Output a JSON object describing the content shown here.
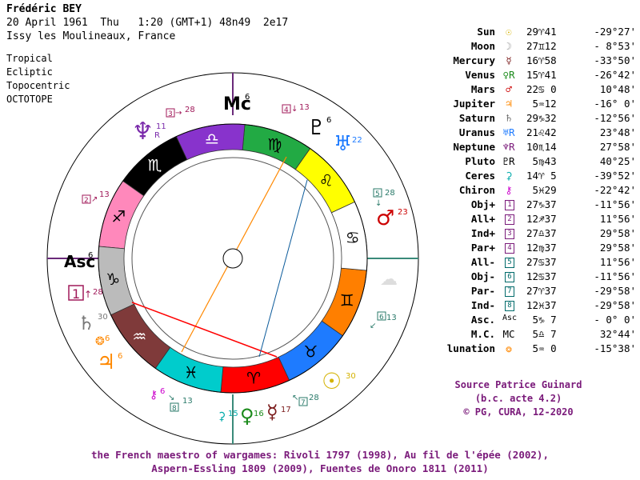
{
  "header": {
    "name": "Frédéric BEY",
    "datetime": "20 April 1961  Thu   1:20 (GMT+1) 48n49  2e17",
    "place": "Issy les Moulineaux, France",
    "systems": [
      "Tropical",
      "Ecliptic",
      "Topocentric",
      "OCTOTOPE"
    ]
  },
  "angles": {
    "mc": "Mc",
    "mc_index": "6",
    "asc": "Asc",
    "asc_index": "6"
  },
  "zodiac_glyphs": {
    "aries": "♈",
    "taurus": "♉",
    "gemini": "♊",
    "cancer": "♋",
    "leo": "♌",
    "virgo": "♍",
    "libra": "♎",
    "scorpio": "♏",
    "sagittarius": "♐",
    "capricorn": "♑",
    "aquarius": "♒",
    "pisces": "♓"
  },
  "colors": {
    "aries": "#ff0000",
    "taurus": "#1e7bff",
    "gemini": "#ff7f00",
    "cancer": "#ffffff",
    "leo": "#ffff00",
    "virgo": "#22aa44",
    "libra": "#8833cc",
    "scorpio": "#000000",
    "sagittarius": "#ff88bb",
    "capricorn": "#bbbbbb",
    "aquarius": "#7f3a3a",
    "pisces": "#00cccc",
    "label_purple": "#7a1a7a",
    "line_orange": "#ff8800",
    "line_red": "#ff0000",
    "line_blue": "#0a5a9a",
    "axis_purple": "#6a2a7a",
    "axis_teal": "#3a8a7a"
  },
  "chart_labels": {
    "neptune": "♆",
    "neptune_num": "11",
    "neptune_r": "R",
    "pluto": "♇",
    "pluto_num": "6",
    "uranus": "♅",
    "uranus_num": "22",
    "mars": "♂",
    "mars_num": "23",
    "saturn": "♄",
    "saturn_num": "30",
    "jupiter": "♃",
    "jupiter_num": "6",
    "ceres_num": "6",
    "chiron_num": "6",
    "sun": "☉",
    "sun_num": "30",
    "venus": "♀",
    "venus_num": "16",
    "mercury": "☿",
    "mercury_num": "17",
    "ceres2_num": "15",
    "box_3": "3",
    "box_3_num": "28",
    "box_4": "4",
    "box_4_num": "13",
    "box_2": "2",
    "box_2_num": "13",
    "box_5": "5",
    "box_5_num": "28",
    "box_6": "6",
    "box_6_num": "13",
    "box_7": "7",
    "box_7_num": "28",
    "box_8": "8",
    "box_8_num": "13",
    "box_1": "1",
    "box_1_num": "28"
  },
  "table": [
    {
      "name": "Sun",
      "glyph": "☉",
      "color": "#d4b200",
      "pos": "29♈41",
      "lat": "-29°27'"
    },
    {
      "name": "Moon",
      "glyph": "☽",
      "color": "#999999",
      "pos": "27♊12",
      "lat": "- 8°53'"
    },
    {
      "name": "Mercury",
      "glyph": "☿",
      "color": "#7a1a1a",
      "pos": "16♈58",
      "lat": "-33°50'"
    },
    {
      "name": "Venus",
      "glyph": "♀R",
      "color": "#1a8a1a",
      "pos": "15♈41",
      "lat": "-26°42'"
    },
    {
      "name": "Mars",
      "glyph": "♂",
      "color": "#cc0000",
      "pos": "22♋ 0",
      "lat": "10°48'"
    },
    {
      "name": "Jupiter",
      "glyph": "♃",
      "color": "#ff8800",
      "pos": " 5♒12",
      "lat": "-16° 0'"
    },
    {
      "name": "Saturn",
      "glyph": "♄",
      "color": "#666666",
      "pos": "29♑32",
      "lat": "-12°56'"
    },
    {
      "name": "Uranus",
      "glyph": "♅R",
      "color": "#1e7bff",
      "pos": "21♌42",
      "lat": "23°48'"
    },
    {
      "name": "Neptune",
      "glyph": "♆R",
      "color": "#7a1a7a",
      "pos": "10♏14",
      "lat": "27°58'"
    },
    {
      "name": "Pluto",
      "glyph": "♇R",
      "color": "#000000",
      "pos": " 5♍43",
      "lat": "40°25'"
    },
    {
      "name": "Ceres",
      "glyph": "⚳",
      "color": "#00aaaa",
      "pos": "14♈ 5",
      "lat": "-39°52'"
    },
    {
      "name": "Chiron",
      "glyph": "⚷",
      "color": "#cc00cc",
      "pos": " 5♓29",
      "lat": "-22°42'"
    },
    {
      "name": "Obj+",
      "glyph": "1",
      "color": "#7a1a7a",
      "pos": "27♑37",
      "lat": "-11°56'"
    },
    {
      "name": "All+",
      "glyph": "2",
      "color": "#7a1a7a",
      "pos": "12♐37",
      "lat": "11°56'"
    },
    {
      "name": "Ind+",
      "glyph": "3",
      "color": "#7a1a7a",
      "pos": "27♎37",
      "lat": "29°58'"
    },
    {
      "name": "Par+",
      "glyph": "4",
      "color": "#7a1a7a",
      "pos": "12♍37",
      "lat": "29°58'"
    },
    {
      "name": "All-",
      "glyph": "5",
      "color": "#006a6a",
      "pos": "27♋37",
      "lat": "11°56'"
    },
    {
      "name": "Obj-",
      "glyph": "6",
      "color": "#006a6a",
      "pos": "12♋37",
      "lat": "-11°56'"
    },
    {
      "name": "Par-",
      "glyph": "7",
      "color": "#006a6a",
      "pos": "27♈37",
      "lat": "-29°58'"
    },
    {
      "name": "Ind-",
      "glyph": "8",
      "color": "#006a6a",
      "pos": "12♓37",
      "lat": "-29°58'"
    },
    {
      "name": "Asc.",
      "glyph": "Asc",
      "color": "#000000",
      "pos": " 5♑ 7",
      "lat": "- 0° 0'"
    },
    {
      "name": "M.C.",
      "glyph": "MC",
      "color": "#000000",
      "pos": " 5♎ 7",
      "lat": "32°44'"
    },
    {
      "name": "lunation",
      "glyph": "❂",
      "color": "#ff8800",
      "pos": " 5♒ 0",
      "lat": "-15°38'"
    }
  ],
  "credits": [
    "Source Patrice Guinard",
    "(b.c. acte 4.2)",
    "© PG, CURA, 12-2020"
  ],
  "footer": [
    "the French maestro of wargames: Rivoli 1797 (1998), Au fil de l'épée (2002),",
    "Aspern-Essling 1809 (2009), Fuentes de Onoro 1811 (2011)"
  ]
}
